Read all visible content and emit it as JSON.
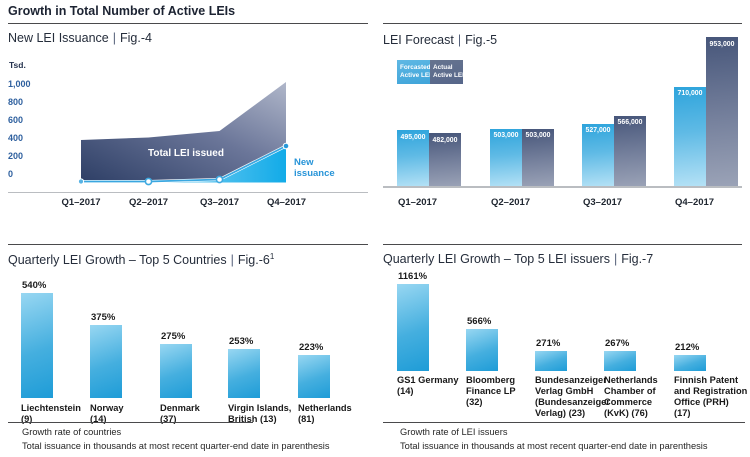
{
  "page_title": "Growth in Total Number of Active LEIs",
  "colors": {
    "cyan_bar": "#29a3dc",
    "cyan_bar_light": "#98d7f2",
    "slate_bar": "#56668a",
    "slate_bar_light": "#9ba3b7",
    "area_navy": "#2e3f66",
    "area_gray": "#b0b7ca",
    "axis_label_blue": "#2d5f9e",
    "callout_blue": "#2794d8",
    "heading_text": "#1c2332",
    "footnote_text": "#262626",
    "rule_dark": "#4a4a4c",
    "rule_light": "#babdc1",
    "bar_value_text": "#ffffff"
  },
  "fig4": {
    "header": {
      "name": "New LEI Issuance",
      "sep": "|",
      "fig": "Fig.-4"
    },
    "unit_label": "Tsd.",
    "y_ticks": [
      "1,000",
      "800",
      "600",
      "400",
      "200",
      "0"
    ],
    "x_labels": [
      "Q1–2017",
      "Q2–2017",
      "Q3–2017",
      "Q4–2017"
    ],
    "area_label": "Total LEI issued",
    "line_label_lines": [
      "New",
      "issuance"
    ]
  },
  "fig5": {
    "header": {
      "name": "LEI Forecast",
      "sep": "|",
      "fig": "Fig.-5"
    },
    "legend": [
      {
        "lines": [
          "Forcasted",
          "Active LEI"
        ]
      },
      {
        "lines": [
          "Actual",
          "Active  LEI"
        ]
      }
    ],
    "x_labels": [
      "Q1–2017",
      "Q2–2017",
      "Q3–2017",
      "Q4–2017"
    ],
    "value_labels": [
      [
        "495,000",
        "482,000"
      ],
      [
        "503,000",
        "503,000"
      ],
      [
        "527,000",
        "566,000"
      ],
      [
        "710,000",
        "953,000"
      ]
    ]
  },
  "fig6": {
    "header": {
      "name": "Quarterly LEI Growth – Top 5 Countries",
      "sep": "|",
      "fig": "Fig.-6",
      "sup": "1"
    },
    "value_labels": [
      "540%",
      "375%",
      "275%",
      "253%",
      "223%"
    ],
    "category_lines": [
      [
        "Liechtenstein",
        "(9)"
      ],
      [
        "Norway",
        "(14)"
      ],
      [
        "Denmark",
        "(37)"
      ],
      [
        "Virgin Islands,",
        "British (13)"
      ],
      [
        "Netherlands",
        "(81)"
      ]
    ]
  },
  "fig7": {
    "header": {
      "name": "Quarterly LEI Growth – Top 5 LEI issuers",
      "sep": "|",
      "fig": "Fig.-7"
    },
    "value_labels": [
      "1161%",
      "566%",
      "271%",
      "267%",
      "212%"
    ],
    "category_lines": [
      [
        "GS1 Germany",
        "(14)"
      ],
      [
        "Bloomberg",
        "Finance LP",
        "(32)"
      ],
      [
        "Bundesanzeiger",
        "Verlag GmbH",
        "(Bundesanzeiger",
        "Verlag) (23)"
      ],
      [
        "Netherlands",
        "Chamber of",
        "Commerce",
        "(KvK) (76)"
      ],
      [
        "Finnish Patent",
        "and Registration",
        "Office (PRH)",
        "(17)"
      ]
    ]
  },
  "footnotes": {
    "left": [
      "Growth rate of countries",
      "Total issuance in thousands at most recent quarter-end date in parenthesis"
    ],
    "right": [
      "Growth rate of LEI issuers",
      "Total issuance in thousands at most recent quarter-end date in parenthesis"
    ]
  },
  "chart_data": [
    {
      "type": "area",
      "title": "New LEI Issuance | Fig.-4",
      "x": [
        "Q1–2017",
        "Q2–2017",
        "Q3–2017",
        "Q4–2017"
      ],
      "ylabel": "Tsd.",
      "ylim": [
        0,
        1000
      ],
      "yticks": [
        0,
        200,
        400,
        600,
        800,
        1000
      ],
      "series": [
        {
          "name": "Total LEI issued",
          "values": [
            380,
            405,
            480,
            1020
          ]
        },
        {
          "name": "New issuance",
          "values": [
            0,
            0,
            20,
            310
          ]
        }
      ],
      "legend_position": "inline-annotations"
    },
    {
      "type": "bar",
      "title": "LEI Forecast | Fig.-5",
      "categories": [
        "Q1–2017",
        "Q2–2017",
        "Q3–2017",
        "Q4–2017"
      ],
      "series": [
        {
          "name": "Forcasted Active LEI",
          "values": [
            495000,
            503000,
            527000,
            710000
          ]
        },
        {
          "name": "Actual Active LEI",
          "values": [
            482000,
            503000,
            566000,
            953000
          ]
        }
      ],
      "legend_position": "top-left"
    },
    {
      "type": "bar",
      "title": "Quarterly LEI Growth – Top 5 Countries | Fig.-6¹",
      "categories": [
        "Liechtenstein (9)",
        "Norway (14)",
        "Denmark (37)",
        "Virgin Islands, British (13)",
        "Netherlands (81)"
      ],
      "values": [
        540,
        375,
        275,
        253,
        223
      ],
      "unit": "%"
    },
    {
      "type": "bar",
      "title": "Quarterly LEI Growth – Top 5 LEI issuers | Fig.-7",
      "categories": [
        "GS1 Germany (14)",
        "Bloomberg Finance LP (32)",
        "Bundesanzeiger Verlag GmbH (Bundesanzeiger Verlag) (23)",
        "Netherlands Chamber of Commerce (KvK) (76)",
        "Finnish Patent and Registration Office (PRH) (17)"
      ],
      "values": [
        1161,
        566,
        271,
        267,
        212
      ],
      "unit": "%"
    }
  ]
}
